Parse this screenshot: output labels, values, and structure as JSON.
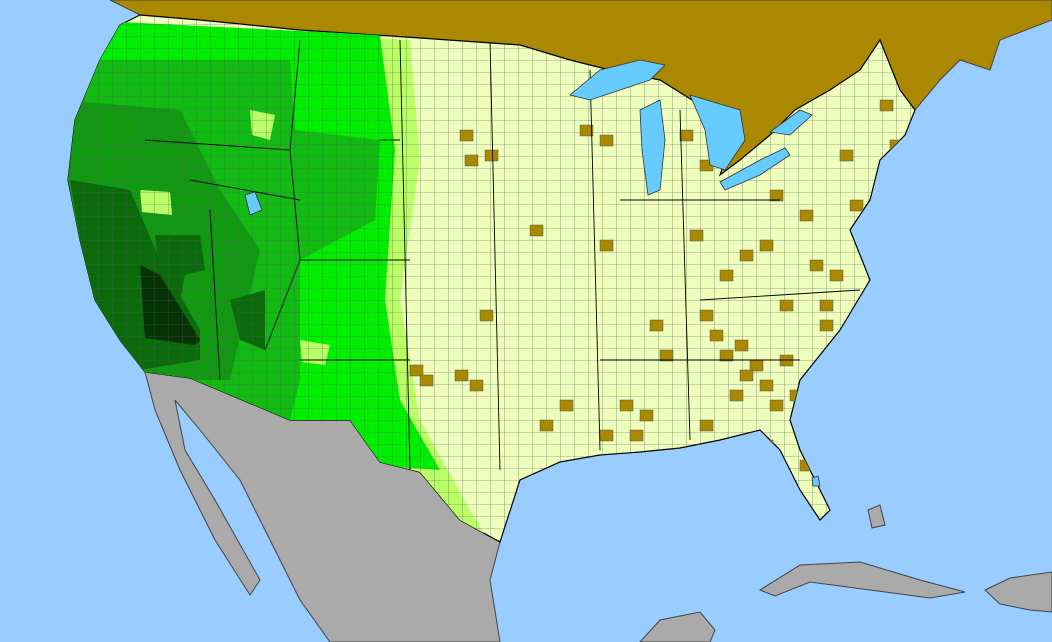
{
  "map": {
    "colors": {
      "ocean": "#99ccff",
      "lake": "#66ccff",
      "canada": "#aa8800",
      "mexico_caribbean": "#aaaaaa",
      "county_border": "#555566",
      "state_border": "#000000",
      "class_lightest": "#eeffbb",
      "class_light": "#bbff66",
      "class_bright": "#00ee00",
      "class_medium": "#11bb11",
      "class_mid_dark": "#119911",
      "class_dark": "#0b6b0b",
      "class_darkest": "#053305",
      "class_absent": "#aa8800"
    }
  }
}
